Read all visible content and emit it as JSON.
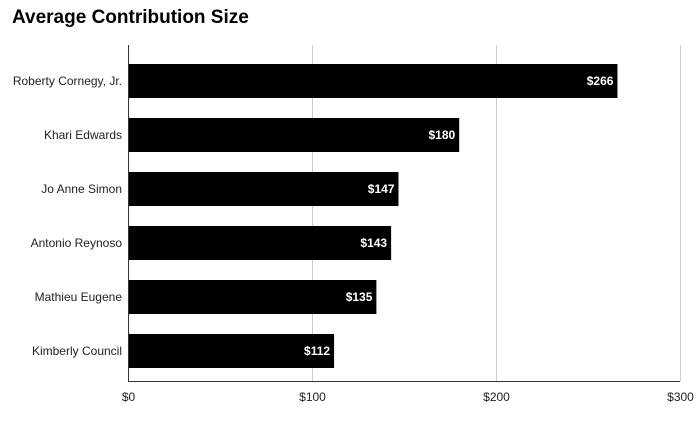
{
  "chart_data": {
    "type": "bar",
    "orientation": "horizontal",
    "title": "Average Contribution Size",
    "categories": [
      "Roberty Cornegy, Jr.",
      "Khari Edwards",
      "Jo Anne Simon",
      "Antonio Reynoso",
      "Mathieu Eugene",
      "Kimberly Council"
    ],
    "values": [
      266,
      180,
      147,
      143,
      135,
      112
    ],
    "data_labels": [
      "$266",
      "$180",
      "$147",
      "$143",
      "$135",
      "$112"
    ],
    "xlim": [
      0,
      300
    ],
    "x_ticks": [
      {
        "value": 0,
        "label": "$0"
      },
      {
        "value": 100,
        "label": "$100"
      },
      {
        "value": 200,
        "label": "$200"
      },
      {
        "value": 300,
        "label": "$300"
      }
    ],
    "xlabel": "",
    "ylabel": "",
    "grid": true,
    "legend": "none",
    "colors": {
      "bar": "#000000",
      "grid": "#cccccc",
      "axis": "#333333",
      "data_label": "#ffffff"
    }
  }
}
